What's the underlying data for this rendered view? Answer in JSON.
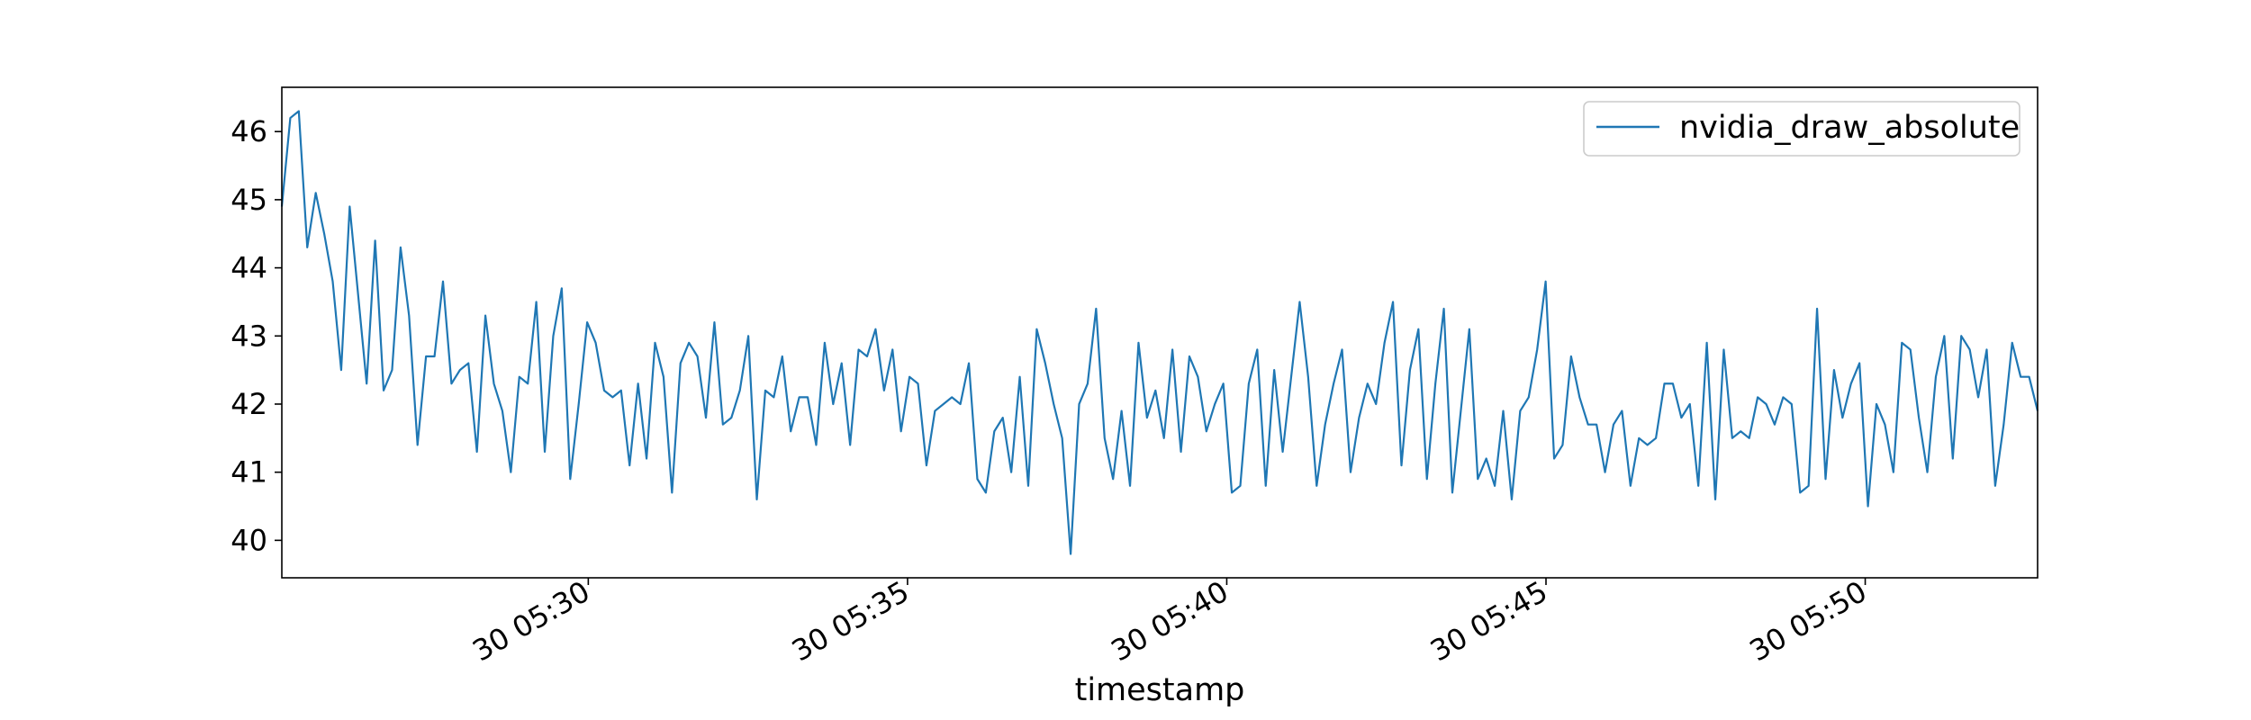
{
  "chart_data": {
    "type": "line",
    "title": "",
    "xlabel": "timestamp",
    "ylabel": "",
    "xlim": [
      -0.5,
      54.5
    ],
    "ylim": [
      39.45,
      46.65
    ],
    "grid": false,
    "legend_position": "top-right",
    "x_tick_labels": [
      {
        "at": 9.1,
        "label": "30 05:30"
      },
      {
        "at": 19.1,
        "label": "30 05:35"
      },
      {
        "at": 29.1,
        "label": "30 05:40"
      },
      {
        "at": 39.1,
        "label": "30 05:45"
      },
      {
        "at": 49.1,
        "label": "30 05:50"
      }
    ],
    "y_ticks": [
      40,
      41,
      42,
      43,
      44,
      45,
      46
    ],
    "series": [
      {
        "name": "nvidia_draw_absolute",
        "color": "#1f77b4",
        "values": [
          44.9,
          46.2,
          46.3,
          44.3,
          45.1,
          44.5,
          43.8,
          42.5,
          44.9,
          43.6,
          42.3,
          44.4,
          42.2,
          42.5,
          44.3,
          43.3,
          41.4,
          42.7,
          42.7,
          43.8,
          42.3,
          42.5,
          42.6,
          41.3,
          43.3,
          42.3,
          41.9,
          41.0,
          42.4,
          42.3,
          43.5,
          41.3,
          43.0,
          43.7,
          40.9,
          42.0,
          43.2,
          42.9,
          42.2,
          42.1,
          42.2,
          41.1,
          42.3,
          41.2,
          42.9,
          42.4,
          40.7,
          42.6,
          42.9,
          42.7,
          41.8,
          43.2,
          41.7,
          41.8,
          42.2,
          43.0,
          40.6,
          42.2,
          42.1,
          42.7,
          41.6,
          42.1,
          42.1,
          41.4,
          42.9,
          42.0,
          42.6,
          41.4,
          42.8,
          42.7,
          43.1,
          42.2,
          42.8,
          41.6,
          42.4,
          42.3,
          41.1,
          41.9,
          42.0,
          42.1,
          42.0,
          42.6,
          40.9,
          40.7,
          41.6,
          41.8,
          41.0,
          42.4,
          40.8,
          43.1,
          42.6,
          42.0,
          41.5,
          39.8,
          42.0,
          42.3,
          43.4,
          41.5,
          40.9,
          41.9,
          40.8,
          42.9,
          41.8,
          42.2,
          41.5,
          42.8,
          41.3,
          42.7,
          42.4,
          41.6,
          42.0,
          42.3,
          40.7,
          40.8,
          42.3,
          42.8,
          40.8,
          42.5,
          41.3,
          42.4,
          43.5,
          42.4,
          40.8,
          41.7,
          42.3,
          42.8,
          41.0,
          41.8,
          42.3,
          42.0,
          42.9,
          43.5,
          41.1,
          42.5,
          43.1,
          40.9,
          42.3,
          43.4,
          40.7,
          41.9,
          43.1,
          40.9,
          41.2,
          40.8,
          41.9,
          40.6,
          41.9,
          42.1,
          42.8,
          43.8,
          41.2,
          41.4,
          42.7,
          42.1,
          41.7,
          41.7,
          41.0,
          41.7,
          41.9,
          40.8,
          41.5,
          41.4,
          41.5,
          42.3,
          42.3,
          41.8,
          42.0,
          40.8,
          42.9,
          40.6,
          42.8,
          41.5,
          41.6,
          41.5,
          42.1,
          42.0,
          41.7,
          42.1,
          42.0,
          40.7,
          40.8,
          43.4,
          40.9,
          42.5,
          41.8,
          42.3,
          42.6,
          40.5,
          42.0,
          41.7,
          41.0,
          42.9,
          42.8,
          41.8,
          41.0,
          42.4,
          43.0,
          41.2,
          43.0,
          42.8,
          42.1,
          42.8,
          40.8,
          41.7,
          42.9,
          42.4,
          42.4,
          41.9
        ]
      }
    ]
  }
}
